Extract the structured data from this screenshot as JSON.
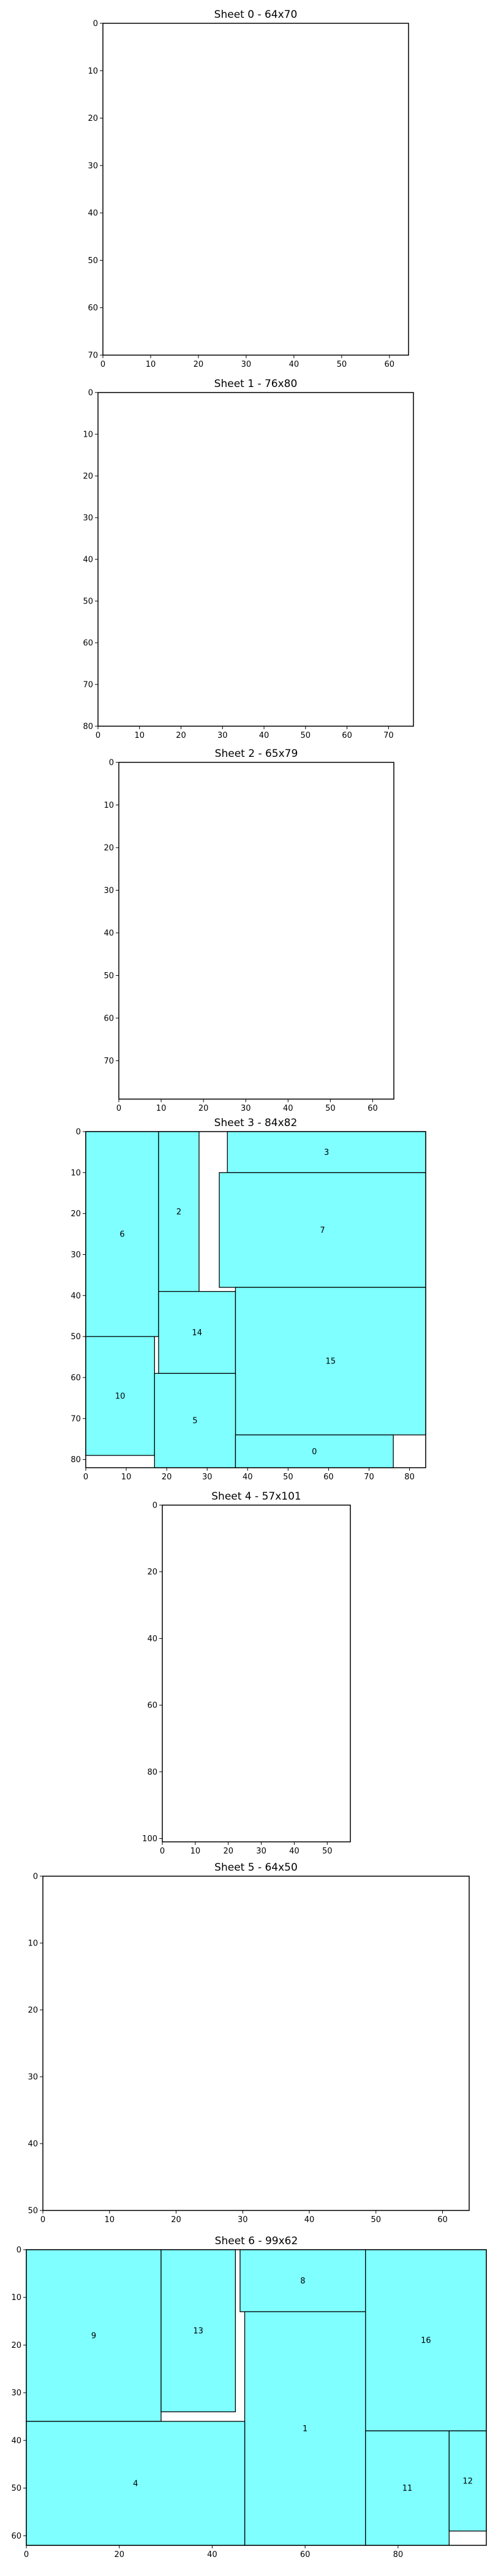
{
  "colors": {
    "rect_fill": "#7fffff",
    "rect_stroke": "#000000",
    "background": "#ffffff"
  },
  "chart_data": [
    {
      "type": "rectangles",
      "title": "Sheet 0 - 64x70",
      "xlim": [
        0,
        64
      ],
      "ylim": [
        0,
        70
      ],
      "y_inverted": true,
      "xticks": [
        0,
        10,
        20,
        30,
        40,
        50,
        60
      ],
      "yticks": [
        0,
        10,
        20,
        30,
        40,
        50,
        60,
        70
      ],
      "rects": []
    },
    {
      "type": "rectangles",
      "title": "Sheet 1 - 76x80",
      "xlim": [
        0,
        76
      ],
      "ylim": [
        0,
        80
      ],
      "y_inverted": true,
      "xticks": [
        0,
        10,
        20,
        30,
        40,
        50,
        60,
        70
      ],
      "yticks": [
        0,
        10,
        20,
        30,
        40,
        50,
        60,
        70,
        80
      ],
      "rects": []
    },
    {
      "type": "rectangles",
      "title": "Sheet 2 - 65x79",
      "xlim": [
        0,
        65
      ],
      "ylim": [
        0,
        79
      ],
      "y_inverted": true,
      "xticks": [
        0,
        10,
        20,
        30,
        40,
        50,
        60
      ],
      "yticks": [
        0,
        10,
        20,
        30,
        40,
        50,
        60,
        70
      ],
      "rects": []
    },
    {
      "type": "rectangles",
      "title": "Sheet 3 - 84x82",
      "xlim": [
        0,
        84
      ],
      "ylim": [
        0,
        82
      ],
      "y_inverted": true,
      "xticks": [
        0,
        10,
        20,
        30,
        40,
        50,
        60,
        70,
        80
      ],
      "yticks": [
        0,
        10,
        20,
        30,
        40,
        50,
        60,
        70,
        80
      ],
      "rects": [
        {
          "label": "6",
          "x": 0,
          "y": 0,
          "w": 18,
          "h": 50
        },
        {
          "label": "2",
          "x": 18,
          "y": 0,
          "w": 10,
          "h": 39
        },
        {
          "label": "3",
          "x": 35,
          "y": 0,
          "w": 49,
          "h": 10
        },
        {
          "label": "7",
          "x": 33,
          "y": 10,
          "w": 51,
          "h": 28
        },
        {
          "label": "14",
          "x": 18,
          "y": 39,
          "w": 19,
          "h": 20
        },
        {
          "label": "15",
          "x": 37,
          "y": 38,
          "w": 47,
          "h": 36
        },
        {
          "label": "10",
          "x": 0,
          "y": 50,
          "w": 17,
          "h": 29
        },
        {
          "label": "5",
          "x": 17,
          "y": 59,
          "w": 20,
          "h": 23
        },
        {
          "label": "0",
          "x": 37,
          "y": 74,
          "w": 39,
          "h": 8
        }
      ]
    },
    {
      "type": "rectangles",
      "title": "Sheet 4 - 57x101",
      "xlim": [
        0,
        57
      ],
      "ylim": [
        0,
        101
      ],
      "y_inverted": true,
      "xticks": [
        0,
        10,
        20,
        30,
        40,
        50
      ],
      "yticks": [
        0,
        20,
        40,
        60,
        80,
        100
      ],
      "rects": []
    },
    {
      "type": "rectangles",
      "title": "Sheet 5 - 64x50",
      "xlim": [
        0,
        64
      ],
      "ylim": [
        0,
        50
      ],
      "y_inverted": true,
      "xticks": [
        0,
        10,
        20,
        30,
        40,
        50,
        60
      ],
      "yticks": [
        0,
        10,
        20,
        30,
        40,
        50
      ],
      "rects": []
    },
    {
      "type": "rectangles",
      "title": "Sheet 6 - 99x62",
      "xlim": [
        0,
        99
      ],
      "ylim": [
        0,
        62
      ],
      "y_inverted": true,
      "xticks": [
        0,
        20,
        40,
        60,
        80
      ],
      "yticks": [
        0,
        10,
        20,
        30,
        40,
        50,
        60
      ],
      "rects": [
        {
          "label": "9",
          "x": 0,
          "y": 0,
          "w": 29,
          "h": 36
        },
        {
          "label": "13",
          "x": 29,
          "y": 0,
          "w": 16,
          "h": 34
        },
        {
          "label": "8",
          "x": 46,
          "y": 0,
          "w": 27,
          "h": 13
        },
        {
          "label": "16",
          "x": 73,
          "y": 0,
          "w": 26,
          "h": 38
        },
        {
          "label": "1",
          "x": 47,
          "y": 13,
          "w": 26,
          "h": 49
        },
        {
          "label": "4",
          "x": 0,
          "y": 36,
          "w": 47,
          "h": 26
        },
        {
          "label": "11",
          "x": 73,
          "y": 38,
          "w": 18,
          "h": 24
        },
        {
          "label": "12",
          "x": 91,
          "y": 38,
          "w": 8,
          "h": 21
        }
      ]
    }
  ]
}
